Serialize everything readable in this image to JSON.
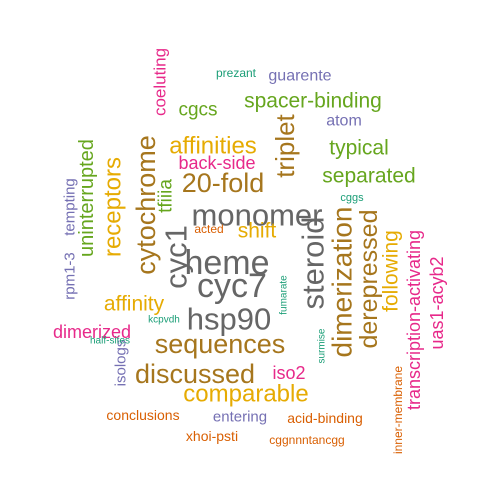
{
  "colors": {
    "teal": "#1b9e77",
    "orange": "#d95f02",
    "purple": "#7570b3",
    "magenta": "#e7298a",
    "green": "#66a61e",
    "gold": "#e6ab02",
    "brown": "#a6761d",
    "gray": "#666666"
  },
  "words": [
    {
      "text": "heme",
      "color": "gray",
      "weight": 10
    },
    {
      "text": "cyc7",
      "color": "gray",
      "weight": 10
    },
    {
      "text": "monomer",
      "color": "gray",
      "weight": 9
    },
    {
      "text": "hsp90",
      "color": "gray",
      "weight": 9
    },
    {
      "text": "steroid",
      "color": "gray",
      "weight": 9
    },
    {
      "text": "cyc1",
      "color": "gray",
      "weight": 9
    },
    {
      "text": "dimerization",
      "color": "brown",
      "weight": 8
    },
    {
      "text": "sequences",
      "color": "brown",
      "weight": 8
    },
    {
      "text": "discussed",
      "color": "brown",
      "weight": 8
    },
    {
      "text": "cytochrome",
      "color": "brown",
      "weight": 8
    },
    {
      "text": "derepressed",
      "color": "brown",
      "weight": 8
    },
    {
      "text": "20-fold",
      "color": "brown",
      "weight": 8
    },
    {
      "text": "triplet",
      "color": "brown",
      "weight": 8
    },
    {
      "text": "receptors",
      "color": "gold",
      "weight": 7
    },
    {
      "text": "affinities",
      "color": "gold",
      "weight": 7
    },
    {
      "text": "comparable",
      "color": "gold",
      "weight": 7
    },
    {
      "text": "following",
      "color": "gold",
      "weight": 6
    },
    {
      "text": "shift",
      "color": "gold",
      "weight": 6
    },
    {
      "text": "affinity",
      "color": "gold",
      "weight": 6
    },
    {
      "text": "typical",
      "color": "green",
      "weight": 6
    },
    {
      "text": "separated",
      "color": "green",
      "weight": 6
    },
    {
      "text": "spacer-binding",
      "color": "green",
      "weight": 6
    },
    {
      "text": "uninterrupted",
      "color": "green",
      "weight": 6
    },
    {
      "text": "cgcs",
      "color": "green",
      "weight": 5
    },
    {
      "text": "tfiiia",
      "color": "green",
      "weight": 5
    },
    {
      "text": "transcription-activating",
      "color": "magenta",
      "weight": 5
    },
    {
      "text": "uas1-acyb2",
      "color": "magenta",
      "weight": 5
    },
    {
      "text": "iso2",
      "color": "magenta",
      "weight": 5
    },
    {
      "text": "back-side",
      "color": "magenta",
      "weight": 5
    },
    {
      "text": "dimerized",
      "color": "magenta",
      "weight": 5
    },
    {
      "text": "coeluting",
      "color": "magenta",
      "weight": 5
    },
    {
      "text": "atom",
      "color": "purple",
      "weight": 4
    },
    {
      "text": "guarente",
      "color": "purple",
      "weight": 4
    },
    {
      "text": "entering",
      "color": "purple",
      "weight": 4
    },
    {
      "text": "rpm1-3",
      "color": "purple",
      "weight": 4
    },
    {
      "text": "tempting",
      "color": "purple",
      "weight": 4
    },
    {
      "text": "isologs",
      "color": "purple",
      "weight": 4
    },
    {
      "text": "conclusions",
      "color": "orange",
      "weight": 4
    },
    {
      "text": "acid-binding",
      "color": "orange",
      "weight": 4
    },
    {
      "text": "xhoi-psti",
      "color": "orange",
      "weight": 4
    },
    {
      "text": "cggnnntancgg",
      "color": "orange",
      "weight": 3
    },
    {
      "text": "inner-membrane",
      "color": "orange",
      "weight": 3
    },
    {
      "text": "acted",
      "color": "orange",
      "weight": 3
    },
    {
      "text": "prezant",
      "color": "teal",
      "weight": 3
    },
    {
      "text": "cggs",
      "color": "teal",
      "weight": 2
    },
    {
      "text": "kcpvdh",
      "color": "teal",
      "weight": 2
    },
    {
      "text": "half-sites",
      "color": "teal",
      "weight": 2
    },
    {
      "text": "fumarate",
      "color": "teal",
      "weight": 2
    },
    {
      "text": "surmise",
      "color": "teal",
      "weight": 2
    }
  ]
}
